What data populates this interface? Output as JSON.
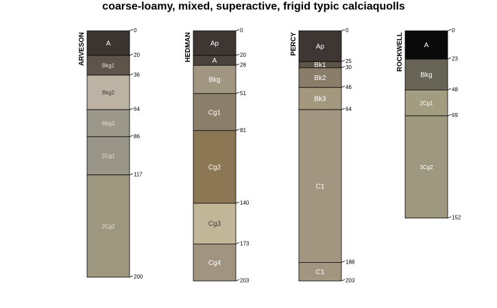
{
  "chart_data": {
    "type": "soil-profile",
    "title": "coarse-loamy, mixed, superactive, frigid typic calciaquolls",
    "depth_unit": "cm",
    "profiles": [
      {
        "name": "ARVESON",
        "horizons": [
          {
            "name": "A",
            "top": 0,
            "bottom": 20,
            "color": "#3b3430",
            "label_color": "#ffffff"
          },
          {
            "name": "Bkg1",
            "top": 20,
            "bottom": 36,
            "color": "#5f5449",
            "label_color": "#e6e1da"
          },
          {
            "name": "Bkg2",
            "top": 36,
            "bottom": 64,
            "color": "#bcb3a5",
            "label_color": "#3c3a36"
          },
          {
            "name": "Bkg3",
            "top": 64,
            "bottom": 86,
            "color": "#9c978b",
            "label_color": "#e6e2da"
          },
          {
            "name": "2Cg1",
            "top": 86,
            "bottom": 117,
            "color": "#999689",
            "label_color": "#e6e2da"
          },
          {
            "name": "2Cg2",
            "top": 117,
            "bottom": 200,
            "color": "#9e9780",
            "label_color": "#e6e2da"
          }
        ]
      },
      {
        "name": "HEDMAN",
        "horizons": [
          {
            "name": "Ap",
            "top": 0,
            "bottom": 20,
            "color": "#3d3632",
            "label_color": "#ffffff"
          },
          {
            "name": "A",
            "top": 20,
            "bottom": 28,
            "color": "#4a433d",
            "label_color": "#ffffff"
          },
          {
            "name": "Bkg",
            "top": 28,
            "bottom": 51,
            "color": "#a19682",
            "label_color": "#ffffff"
          },
          {
            "name": "Cg1",
            "top": 51,
            "bottom": 81,
            "color": "#8b7f6b",
            "label_color": "#ffffff"
          },
          {
            "name": "Cg2",
            "top": 81,
            "bottom": 140,
            "color": "#8c7755",
            "label_color": "#ffffff"
          },
          {
            "name": "Cg3",
            "top": 140,
            "bottom": 173,
            "color": "#c2b699",
            "label_color": "#3c3a36"
          },
          {
            "name": "Cg4",
            "top": 173,
            "bottom": 203,
            "color": "#a19581",
            "label_color": "#ffffff"
          }
        ]
      },
      {
        "name": "PERCY",
        "horizons": [
          {
            "name": "Ap",
            "top": 0,
            "bottom": 25,
            "color": "#3d3632",
            "label_color": "#ffffff"
          },
          {
            "name": "Bk1",
            "top": 25,
            "bottom": 30,
            "color": "#5e5448",
            "label_color": "#ffffff"
          },
          {
            "name": "Bk2",
            "top": 30,
            "bottom": 46,
            "color": "#8a7e6a",
            "label_color": "#ffffff"
          },
          {
            "name": "Bk3",
            "top": 46,
            "bottom": 64,
            "color": "#a4987f",
            "label_color": "#ffffff"
          },
          {
            "name": "C1",
            "top": 64,
            "bottom": 188,
            "color": "#a29681",
            "label_color": "#ffffff"
          },
          {
            "name": "C1",
            "top": 188,
            "bottom": 203,
            "color": "#a29681",
            "label_color": "#ffffff"
          }
        ]
      },
      {
        "name": "ROCKWELL",
        "horizons": [
          {
            "name": "A",
            "top": 0,
            "bottom": 23,
            "color": "#0a0909",
            "label_color": "#ffffff"
          },
          {
            "name": "Bkg",
            "top": 23,
            "bottom": 48,
            "color": "#676355",
            "label_color": "#ffffff"
          },
          {
            "name": "2Cg1",
            "top": 48,
            "bottom": 69,
            "color": "#a29c80",
            "label_color": "#ffffff"
          },
          {
            "name": "3Cg2",
            "top": 69,
            "bottom": 152,
            "color": "#9e9880",
            "label_color": "#ffffff"
          }
        ]
      }
    ]
  }
}
